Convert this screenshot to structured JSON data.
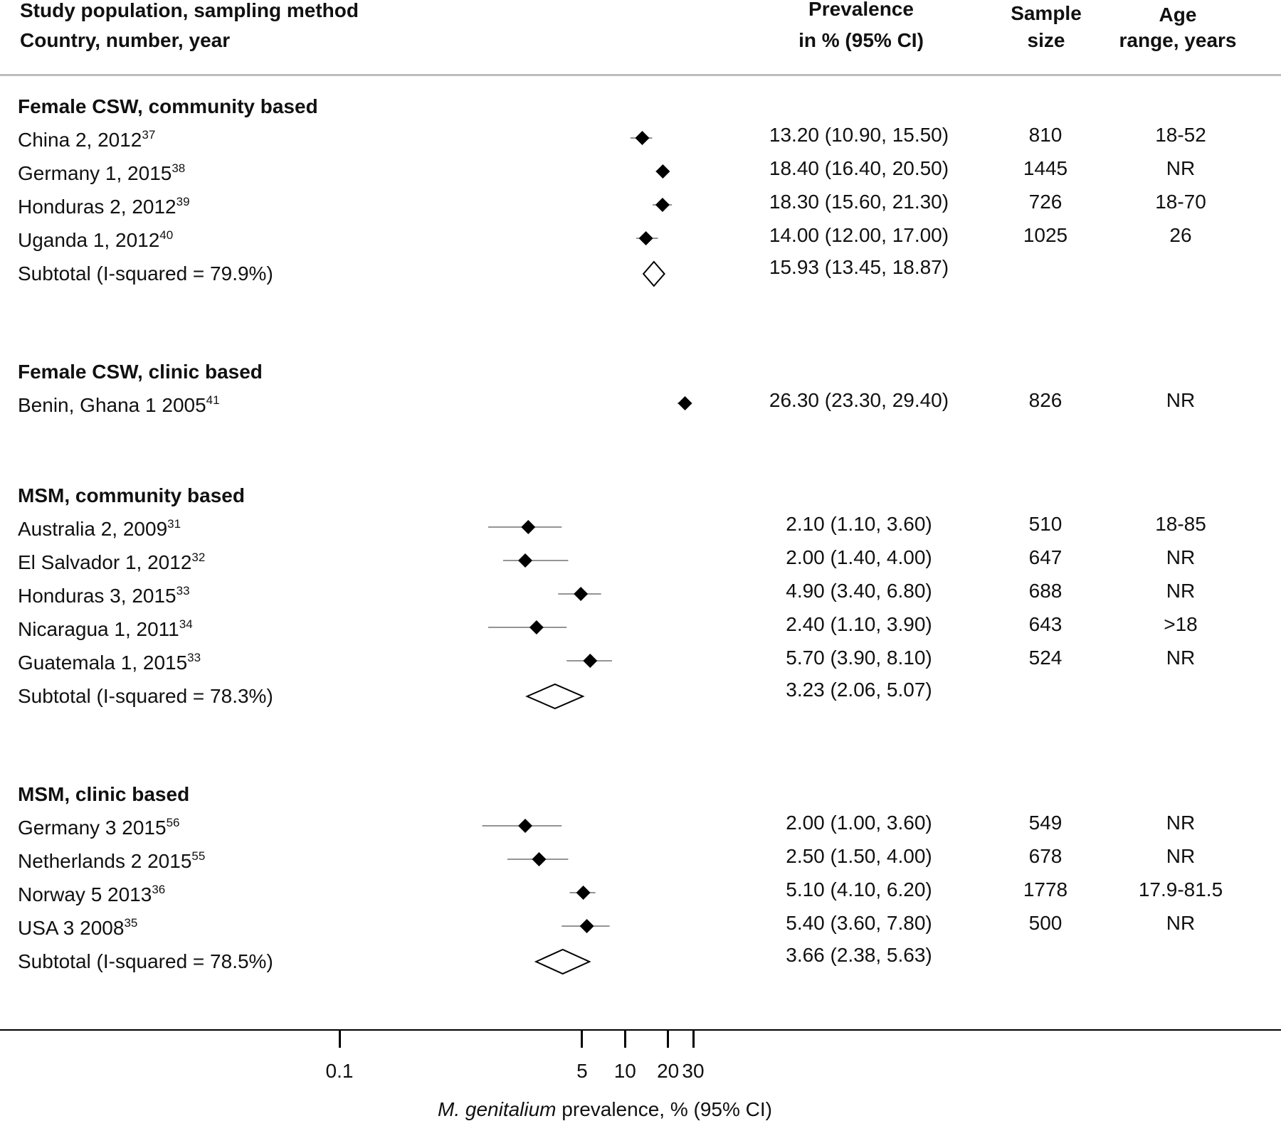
{
  "header": {
    "study_line1": "Study population, sampling method",
    "study_line2": "Country, number, year",
    "prev_line1": "Prevalence",
    "prev_line2": "in % (95% CI)",
    "sample_line1": "Sample",
    "sample_line2": "size",
    "age_line1": "Age",
    "age_line2": "range, years"
  },
  "groups": [
    {
      "title": "Female CSW, community based",
      "studies": [
        {
          "name": "China 2, 2012",
          "ref": "37",
          "est": 13.2,
          "lo": 10.9,
          "hi": 15.5,
          "ci_text": "13.20 (10.90, 15.50)",
          "n": "810",
          "age": "18-52"
        },
        {
          "name": "Germany 1, 2015",
          "ref": "38",
          "est": 18.4,
          "lo": 16.4,
          "hi": 20.5,
          "ci_text": "18.40 (16.40, 20.50)",
          "n": "1445",
          "age": "NR"
        },
        {
          "name": "Honduras 2, 2012",
          "ref": "39",
          "est": 18.3,
          "lo": 15.6,
          "hi": 21.3,
          "ci_text": "18.30 (15.60, 21.30)",
          "n": "726",
          "age": "18-70"
        },
        {
          "name": "Uganda 1, 2012",
          "ref": "40",
          "est": 14.0,
          "lo": 12.0,
          "hi": 17.0,
          "ci_text": "14.00 (12.00, 17.00)",
          "n": "1025",
          "age": "26"
        }
      ],
      "subtotal": {
        "label": "Subtotal  (I-squared = 79.9%)",
        "est": 15.93,
        "lo": 13.45,
        "hi": 18.87,
        "ci_text": "15.93 (13.45, 18.87)"
      }
    },
    {
      "title": "Female CSW, clinic based",
      "studies": [
        {
          "name": "Benin, Ghana 1 2005",
          "ref": "41",
          "est": 26.3,
          "lo": 23.3,
          "hi": 29.4,
          "ci_text": "26.30 (23.30, 29.40)",
          "n": "826",
          "age": "NR"
        }
      ],
      "subtotal": null
    },
    {
      "title": "MSM, community based",
      "studies": [
        {
          "name": "Australia 2, 2009",
          "ref": "31",
          "est": 2.1,
          "lo": 1.1,
          "hi": 3.6,
          "ci_text": "2.10 (1.10, 3.60)",
          "n": "510",
          "age": "18-85"
        },
        {
          "name": "El Salvador 1, 2012",
          "ref": "32",
          "est": 2.0,
          "lo": 1.4,
          "hi": 4.0,
          "ci_text": "2.00 (1.40, 4.00)",
          "n": "647",
          "age": "NR"
        },
        {
          "name": "Honduras 3, 2015",
          "ref": "33",
          "est": 4.9,
          "lo": 3.4,
          "hi": 6.8,
          "ci_text": "4.90 (3.40, 6.80)",
          "n": "688",
          "age": "NR"
        },
        {
          "name": "Nicaragua 1, 2011",
          "ref": "34",
          "est": 2.4,
          "lo": 1.1,
          "hi": 3.9,
          "ci_text": "2.40 (1.10, 3.90)",
          "n": "643",
          "age": ">18"
        },
        {
          "name": "Guatemala 1, 2015",
          "ref": "33",
          "est": 5.7,
          "lo": 3.9,
          "hi": 8.1,
          "ci_text": "5.70 (3.90, 8.10)",
          "n": "524",
          "age": "NR"
        }
      ],
      "subtotal": {
        "label": "Subtotal  (I-squared = 78.3%)",
        "est": 3.23,
        "lo": 2.06,
        "hi": 5.07,
        "ci_text": "3.23 (2.06, 5.07)"
      }
    },
    {
      "title": "MSM, clinic based",
      "studies": [
        {
          "name": "Germany 3 2015",
          "ref": "56",
          "est": 2.0,
          "lo": 1.0,
          "hi": 3.6,
          "ci_text": "2.00 (1.00, 3.60)",
          "n": "549",
          "age": "NR"
        },
        {
          "name": "Netherlands 2 2015",
          "ref": "55",
          "est": 2.5,
          "lo": 1.5,
          "hi": 4.0,
          "ci_text": "2.50 (1.50, 4.00)",
          "n": "678",
          "age": "NR"
        },
        {
          "name": "Norway 5 2013",
          "ref": "36",
          "est": 5.1,
          "lo": 4.1,
          "hi": 6.2,
          "ci_text": "5.10 (4.10, 6.20)",
          "n": "1778",
          "age": "17.9-81.5"
        },
        {
          "name": "USA 3 2008",
          "ref": "35",
          "est": 5.4,
          "lo": 3.6,
          "hi": 7.8,
          "ci_text": "5.40 (3.60, 7.80)",
          "n": "500",
          "age": "NR"
        }
      ],
      "subtotal": {
        "label": "Subtotal  (I-squared = 78.5%)",
        "est": 3.66,
        "lo": 2.38,
        "hi": 5.63,
        "ci_text": "3.66 (2.38, 5.63)"
      }
    }
  ],
  "chart_data": {
    "type": "forest",
    "xscale": "log",
    "xticks": [
      0.1,
      5,
      10,
      20,
      30
    ],
    "xtick_labels": [
      "0.1",
      "5",
      "10",
      "20",
      "30"
    ],
    "xlabel_italic": "M. genitalium",
    "xlabel_rest": " prevalence, % (95% CI)"
  },
  "colors": {
    "marker": "#000000",
    "ci_line": "#555555",
    "separator": "#bdbdbd"
  }
}
